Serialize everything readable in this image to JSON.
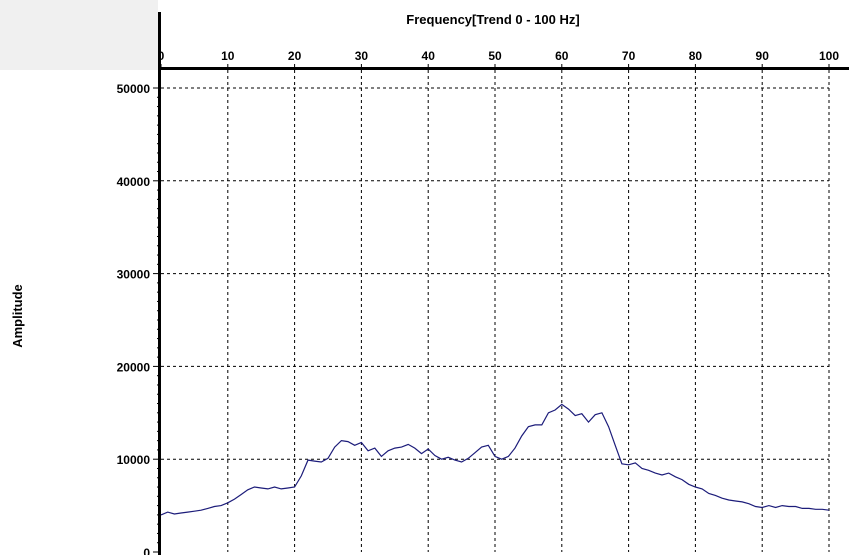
{
  "chart_data": {
    "type": "line",
    "title": "Frequency[Trend 0 - 100 Hz]",
    "xlabel": "",
    "ylabel": "Amplitude",
    "xlim": [
      0,
      100
    ],
    "ylim": [
      0,
      50000
    ],
    "xticks": [
      0,
      10,
      20,
      30,
      40,
      50,
      60,
      70,
      80,
      90,
      100
    ],
    "xtick_labels": [
      "0",
      "10",
      "20",
      "30",
      "40",
      "50",
      "60",
      "70",
      "80",
      "90",
      "100"
    ],
    "yticks": [
      0,
      10000,
      20000,
      30000,
      40000,
      50000
    ],
    "ytick_labels": [
      "0",
      "10000",
      "20000",
      "30000",
      "40000",
      "50000"
    ],
    "x_axis_position": "top",
    "grid": true,
    "grid_style": "dashed",
    "line_color": "#1c1c7a",
    "series": [
      {
        "x": [
          0,
          1,
          2,
          3,
          4,
          5,
          6,
          7,
          8,
          9,
          10,
          11,
          12,
          13,
          14,
          15,
          16,
          17,
          18,
          19,
          20,
          21,
          22,
          23,
          24,
          25,
          26,
          27,
          28,
          29,
          30,
          31,
          32,
          33,
          34,
          35,
          36,
          37,
          38,
          39,
          40,
          41,
          42,
          43,
          44,
          45,
          46,
          47,
          48,
          49,
          50,
          51,
          52,
          53,
          54,
          55,
          56,
          57,
          58,
          59,
          60,
          61,
          62,
          63,
          64,
          65,
          66,
          67,
          68,
          69,
          70,
          71,
          72,
          73,
          74,
          75,
          76,
          77,
          78,
          79,
          80,
          81,
          82,
          83,
          84,
          85,
          86,
          87,
          88,
          89,
          90,
          91,
          92,
          93,
          94,
          95,
          96,
          97,
          98,
          99,
          100
        ],
        "values": [
          4000,
          4300,
          4100,
          4200,
          4300,
          4400,
          4500,
          4700,
          4900,
          5000,
          5300,
          5700,
          6200,
          6700,
          7000,
          6900,
          6800,
          7000,
          6800,
          6900,
          7000,
          8200,
          9900,
          9800,
          9700,
          10100,
          11300,
          12000,
          11900,
          11500,
          11800,
          10900,
          11200,
          10300,
          10900,
          11200,
          11300,
          11600,
          11200,
          10600,
          11100,
          10400,
          10000,
          10200,
          9900,
          9700,
          10100,
          10700,
          11300,
          11500,
          10300,
          10000,
          10300,
          11200,
          12500,
          13500,
          13700,
          13700,
          15000,
          15300,
          15900,
          15400,
          14700,
          14900,
          14000,
          14800,
          15000,
          13500,
          11500,
          9500,
          9400,
          9600,
          9000,
          8800,
          8500,
          8300,
          8500,
          8100,
          7800,
          7300,
          7000,
          6800,
          6300,
          6100,
          5800,
          5600,
          5500,
          5400,
          5200,
          4900,
          4800,
          5000,
          4800,
          5000,
          4900,
          4900,
          4700,
          4700,
          4600,
          4600,
          4500
        ]
      }
    ]
  }
}
